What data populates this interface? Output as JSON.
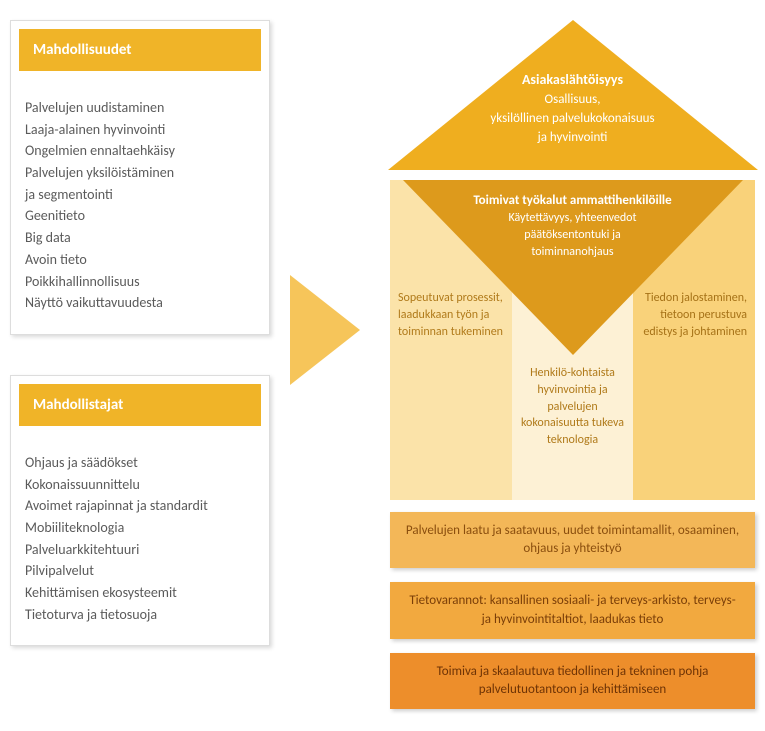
{
  "colors": {
    "text": "#5a5a5a",
    "header1": "#f0b428",
    "header2": "#f0b428",
    "arrow": "#f6c55a",
    "roof": "#efae1f",
    "inner_tri": "#dd9a1c",
    "pillar_left_bg": "#fbe3a9",
    "pillar_left_text": "#b07a1a",
    "pillar_mid_bg": "#fdf1d5",
    "pillar_mid_text": "#b07a1a",
    "pillar_right_bg": "#f9d27a",
    "pillar_right_text": "#a67217",
    "bar1_bg": "#f3b758",
    "bar1_text": "#8a4e0e",
    "bar2_bg": "#f2a93f",
    "bar2_text": "#7a3e08",
    "bar3_bg": "#ed8e2b",
    "bar3_text": "#6e3305"
  },
  "left": {
    "card1": {
      "title": "Mahdollisuudet",
      "items": [
        "Palvelujen uudistaminen",
        "Laaja-alainen hyvinvointi",
        "Ongelmien ennaltaehkäisy",
        "Palvelujen yksilöistäminen",
        "ja segmentointi",
        "Geenitieto",
        "Big data",
        "Avoin tieto",
        "Poikkihallinnollisuus",
        "Näyttö vaikuttavuudesta"
      ]
    },
    "card2": {
      "title": "Mahdollistajat",
      "items": [
        "Ohjaus ja säädökset",
        "Kokonaissuunnittelu",
        "Avoimet rajapinnat ja standardit",
        "Mobiiliteknologia",
        "Palveluarkkitehtuuri",
        "Pilvipalvelut",
        "Kehittämisen ekosysteemit",
        "Tietoturva ja tietosuoja"
      ]
    }
  },
  "roof": {
    "title": "Asiakaslähtöisyys",
    "line1": "Osallisuus,",
    "line2": "yksilöllinen palvelukokonaisuus",
    "line3": "ja hyvinvointi"
  },
  "inner": {
    "title": "Toimivat työkalut ammattihenkilöille",
    "line1": "Käytettävyys, yhteenvedot",
    "line2": "päätöksentontuki ja",
    "line3": "toiminnanohjaus"
  },
  "pillars": {
    "left": "Sopeutuvat prosessit, laadukkaan työn ja toiminnan tukeminen",
    "mid": "Henkilö-kohtaista hyvinvointia ja palvelujen kokonaisuutta tukeva teknologia",
    "right": "Tiedon jalostaminen, tietoon perustuva edistys ja johtaminen"
  },
  "bars": {
    "b1": "Palvelujen laatu ja saatavuus, uudet toimintamallit, osaaminen, ohjaus ja yhteistyö",
    "b2": "Tietovarannot: kansallinen sosiaali- ja terveys-arkisto, terveys- ja hyvinvointitaltiot, laadukas tieto",
    "b3": "Toimiva ja skaalautuva tiedollinen ja tekninen pohja palvelutuotantoon ja kehittämiseen"
  }
}
